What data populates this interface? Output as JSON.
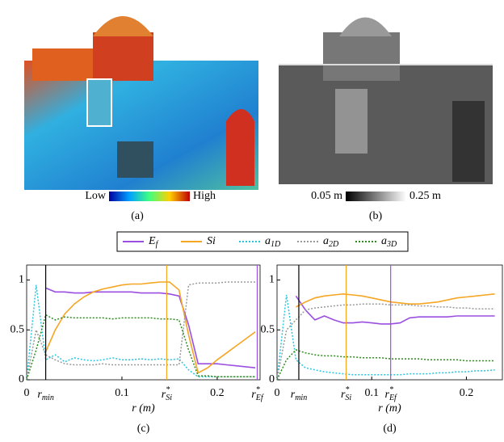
{
  "panels": [
    {
      "caption": "(a)",
      "colorbar": {
        "low": "Low",
        "high": "High"
      }
    },
    {
      "caption": "(b)",
      "colorbar": {
        "low": "0.05 m",
        "high": "0.25 m"
      }
    }
  ],
  "chart_data": [
    {
      "type": "line",
      "caption": "(c)",
      "xlabel": "r (m)",
      "xlim": [
        0,
        0.245
      ],
      "ylim": [
        0,
        1.15
      ],
      "xticks": [
        0,
        0.1,
        0.2
      ],
      "yticks": [
        0,
        0.5,
        1
      ],
      "x": [
        0,
        0.01,
        0.02,
        0.03,
        0.04,
        0.05,
        0.06,
        0.07,
        0.08,
        0.09,
        0.1,
        0.11,
        0.12,
        0.13,
        0.14,
        0.15,
        0.16,
        0.17,
        0.18,
        0.19,
        0.2,
        0.21,
        0.22,
        0.23,
        0.24
      ],
      "series": [
        {
          "name": "E",
          "sub": "f",
          "color": "#9b4fe0",
          "style": "solid",
          "values": [
            null,
            null,
            0.92,
            0.88,
            0.88,
            0.87,
            0.87,
            0.88,
            0.88,
            0.88,
            0.88,
            0.88,
            0.87,
            0.87,
            0.87,
            0.86,
            0.84,
            0.55,
            0.16,
            0.16,
            0.16,
            0.15,
            0.14,
            0.13,
            0.12
          ]
        },
        {
          "name": "Si",
          "color": "#f5a623",
          "style": "solid",
          "values": [
            null,
            null,
            0.28,
            0.5,
            0.66,
            0.76,
            0.83,
            0.88,
            0.91,
            0.93,
            0.95,
            0.96,
            0.96,
            0.97,
            0.98,
            0.98,
            0.9,
            0.45,
            0.07,
            0.12,
            0.2,
            0.27,
            0.34,
            0.41,
            0.48
          ]
        },
        {
          "name": "a",
          "sub": "1D",
          "color": "#27c6e0",
          "style": "dotted",
          "values": [
            0,
            0.95,
            0.2,
            0.25,
            0.18,
            0.22,
            0.2,
            0.19,
            0.2,
            0.22,
            0.2,
            0.2,
            0.21,
            0.2,
            0.21,
            0.2,
            0.21,
            0.1,
            0.03,
            0.03,
            0.03,
            0.03,
            0.03,
            0.03,
            0.03
          ]
        },
        {
          "name": "a",
          "sub": "2D",
          "color": "#999999",
          "style": "dotted",
          "values": [
            0,
            0.5,
            0.25,
            0.2,
            0.16,
            0.15,
            0.15,
            0.15,
            0.16,
            0.15,
            0.15,
            0.15,
            0.15,
            0.15,
            0.15,
            0.15,
            0.15,
            0.95,
            0.97,
            0.97,
            0.97,
            0.98,
            0.98,
            0.98,
            0.98
          ]
        },
        {
          "name": "a",
          "sub": "3D",
          "color": "#2e8b1e",
          "style": "dotted",
          "values": [
            0,
            0.3,
            0.65,
            0.6,
            0.63,
            0.62,
            0.62,
            0.62,
            0.62,
            0.61,
            0.62,
            0.62,
            0.62,
            0.62,
            0.61,
            0.61,
            0.6,
            0.3,
            0.04,
            0.04,
            0.03,
            0.03,
            0.03,
            0.03,
            0.03
          ]
        }
      ],
      "markers": [
        {
          "x": 0.02,
          "base": "r",
          "sub": "min",
          "color": "#000000"
        },
        {
          "x": 0.147,
          "base": "r",
          "sup": "*",
          "sub": "Si",
          "color": "#f5a623"
        },
        {
          "x": 0.242,
          "base": "r",
          "sup": "*",
          "sub": "Ef",
          "color": "#9b4fe0"
        }
      ]
    },
    {
      "type": "line",
      "caption": "(d)",
      "xlabel": "r (m)",
      "xlim": [
        0,
        0.238
      ],
      "ylim": [
        0,
        1.15
      ],
      "xticks": [
        0,
        0.1,
        0.2
      ],
      "yticks": [
        0,
        0.5,
        1
      ],
      "x": [
        0,
        0.01,
        0.02,
        0.03,
        0.04,
        0.05,
        0.06,
        0.07,
        0.08,
        0.09,
        0.1,
        0.11,
        0.12,
        0.13,
        0.14,
        0.15,
        0.16,
        0.17,
        0.18,
        0.19,
        0.2,
        0.21,
        0.22,
        0.23
      ],
      "series": [
        {
          "color": "#9b4fe0",
          "style": "solid",
          "values": [
            null,
            null,
            0.84,
            0.7,
            0.6,
            0.64,
            0.6,
            0.57,
            0.57,
            0.58,
            0.57,
            0.56,
            0.56,
            0.57,
            0.62,
            0.63,
            0.63,
            0.63,
            0.63,
            0.64,
            0.64,
            0.64,
            0.64,
            0.64
          ]
        },
        {
          "color": "#f5a623",
          "style": "solid",
          "values": [
            null,
            null,
            0.73,
            0.78,
            0.82,
            0.84,
            0.85,
            0.86,
            0.85,
            0.84,
            0.82,
            0.8,
            0.78,
            0.77,
            0.76,
            0.76,
            0.77,
            0.78,
            0.8,
            0.82,
            0.83,
            0.84,
            0.85,
            0.86
          ]
        },
        {
          "color": "#27c6e0",
          "style": "dotted",
          "values": [
            0,
            0.85,
            0.2,
            0.12,
            0.1,
            0.08,
            0.07,
            0.06,
            0.05,
            0.05,
            0.05,
            0.05,
            0.05,
            0.05,
            0.06,
            0.06,
            0.06,
            0.07,
            0.07,
            0.08,
            0.08,
            0.09,
            0.09,
            0.1
          ]
        },
        {
          "color": "#999999",
          "style": "dotted",
          "values": [
            0,
            0.5,
            0.6,
            0.7,
            0.72,
            0.73,
            0.74,
            0.75,
            0.75,
            0.76,
            0.76,
            0.76,
            0.75,
            0.75,
            0.75,
            0.74,
            0.74,
            0.73,
            0.73,
            0.72,
            0.72,
            0.71,
            0.71,
            0.71
          ]
        },
        {
          "color": "#2e8b1e",
          "style": "dotted",
          "values": [
            0,
            0.2,
            0.3,
            0.27,
            0.25,
            0.24,
            0.24,
            0.23,
            0.23,
            0.22,
            0.22,
            0.22,
            0.21,
            0.21,
            0.21,
            0.21,
            0.2,
            0.2,
            0.2,
            0.2,
            0.19,
            0.19,
            0.19,
            0.19
          ]
        }
      ],
      "markers": [
        {
          "x": 0.023,
          "base": "r",
          "sub": "min",
          "color": "#000000"
        },
        {
          "x": 0.073,
          "base": "r",
          "sup": "*",
          "sub": "Si",
          "color": "#f5a623"
        },
        {
          "x": 0.12,
          "base": "r",
          "sup": "*",
          "sub": "Ef",
          "color": "#9b4fe0"
        }
      ]
    }
  ]
}
